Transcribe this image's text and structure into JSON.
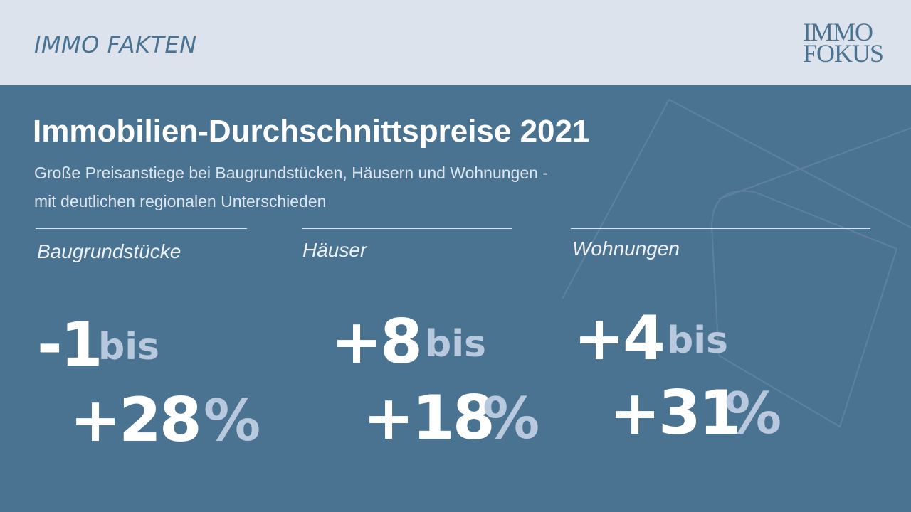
{
  "header": {
    "label": "IMMO FAKTEN",
    "logo": [
      "IMMO",
      "FOKUS"
    ]
  },
  "title": "Immobilien-Durchschnittspreise 2021",
  "subtitle": [
    "Große Preisanstiege bei Baugrundstücken, Häusern und Wohnungen -",
    "mit deutlichen regionalen Unterschieden"
  ],
  "columns": [
    {
      "label": "Baugrundstücke",
      "from": "-1",
      "connector": "bis",
      "to": "+28",
      "unit": "%"
    },
    {
      "label": "Häuser",
      "from": "+8",
      "connector": "bis",
      "to": "+18",
      "unit": "%"
    },
    {
      "label": "Wohnungen",
      "from": "+4",
      "connector": "bis",
      "to": "+31",
      "unit": "%"
    }
  ]
}
